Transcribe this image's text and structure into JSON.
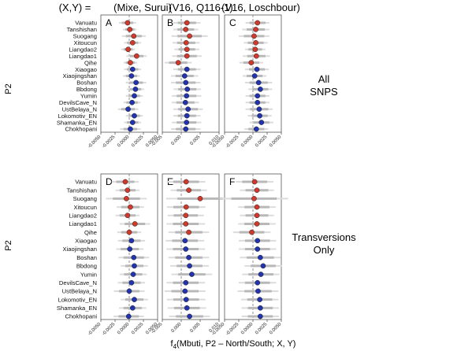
{
  "header": {
    "xy_label": "(X,Y) =",
    "columns": [
      "(Mixe, Surui)",
      "(V16, Q116-1)",
      "(V16, Loschbour)"
    ]
  },
  "row_titles": [
    [
      "All",
      "SNPS"
    ],
    [
      "Transversions",
      "Only"
    ]
  ],
  "ylabel": "P2",
  "xlabel_parts": {
    "f": "f",
    "sub": "4",
    "rest": "(Mbuti, P2 – North/South; X, Y)"
  },
  "colors": {
    "north": "#d0392b",
    "south": "#2233b0",
    "error_bar": "#b8b8b8",
    "error_bar_light": "#dcdcdc",
    "zero_line": "#777777"
  },
  "chart_data": {
    "type": "scatter",
    "populations": [
      "Vanuatu",
      "Tanshishan",
      "Suogang",
      "Xitoucun",
      "Liangdao2",
      "Liangdao1",
      "Qihe",
      "Xiaogao",
      "Xiaojingshan",
      "Boshan",
      "Bbdong",
      "Yumin",
      "DevilsCave_N",
      "UstBelaya_N",
      "Lokomotiv_EN",
      "Shamanka_EN",
      "Chokhopani"
    ],
    "group": [
      "north",
      "north",
      "north",
      "north",
      "north",
      "north",
      "north",
      "south",
      "south",
      "south",
      "south",
      "south",
      "south",
      "south",
      "south",
      "south",
      "south"
    ],
    "panels": [
      {
        "label": "A",
        "row": 0,
        "col": 0,
        "xlim": [
          -0.005,
          0.005
        ],
        "xticks": [
          -0.005,
          -0.0025,
          0.0,
          0.0025,
          0.005
        ],
        "xticklabels": [
          "-0.0050",
          "-0.0025",
          "0.0000",
          "0.0025",
          "0.0050"
        ],
        "values": [
          -0.0003,
          0.0001,
          0.0008,
          0.0006,
          -0.0002,
          0.0013,
          0.0002,
          0.0006,
          0.0004,
          0.0012,
          0.0011,
          0.0009,
          0.0005,
          -0.0002,
          0.0009,
          0.0006,
          0.0002
        ],
        "se": [
          0.0005,
          0.0004,
          0.0007,
          0.0005,
          0.0004,
          0.0006,
          0.0004,
          0.0005,
          0.0005,
          0.0006,
          0.0005,
          0.0005,
          0.0005,
          0.0006,
          0.0005,
          0.0005,
          0.0006
        ]
      },
      {
        "label": "B",
        "row": 0,
        "col": 1,
        "xlim": [
          -0.005,
          0.01
        ],
        "xticks": [
          -0.005,
          0.0,
          0.005,
          0.01
        ],
        "xticklabels": [
          "-0.005",
          "0.000",
          "0.005",
          "0.010"
        ],
        "values": [
          0.0015,
          0.0012,
          0.0022,
          0.0013,
          0.0015,
          0.0015,
          -0.0008,
          0.0015,
          0.0009,
          0.0012,
          0.0016,
          0.0014,
          0.0011,
          0.0018,
          0.0015,
          0.0014,
          0.0012
        ],
        "se": [
          0.0012,
          0.0011,
          0.0016,
          0.0012,
          0.0011,
          0.0013,
          0.0012,
          0.0012,
          0.0012,
          0.0013,
          0.0012,
          0.0013,
          0.0012,
          0.0013,
          0.0012,
          0.0013,
          0.0013
        ]
      },
      {
        "label": "C",
        "row": 0,
        "col": 2,
        "xlim": [
          -0.005,
          0.005
        ],
        "xticks": [
          -0.005,
          -0.0025,
          0.0,
          0.0025,
          0.005
        ],
        "xticklabels": [
          "-0.0050",
          "-0.0025",
          "0.0000",
          "0.0025",
          "0.0050"
        ],
        "values": [
          0.0008,
          0.0005,
          0.0002,
          0.0005,
          0.0004,
          0.0006,
          -0.0003,
          0.0007,
          0.0003,
          0.001,
          0.0013,
          0.0008,
          0.0008,
          0.0011,
          0.0012,
          0.0015,
          0.0006
        ],
        "se": [
          0.0007,
          0.0008,
          0.0009,
          0.0007,
          0.0006,
          0.0008,
          0.0007,
          0.0007,
          0.0007,
          0.0008,
          0.0007,
          0.0007,
          0.0007,
          0.0008,
          0.0007,
          0.0007,
          0.0007
        ]
      },
      {
        "label": "D",
        "row": 1,
        "col": 0,
        "xlim": [
          -0.005,
          0.005
        ],
        "xticks": [
          -0.005,
          -0.0025,
          0.0,
          0.0025,
          0.005
        ],
        "xticklabels": [
          "-0.0050",
          "-0.0025",
          "0.0000",
          "0.0025",
          "0.0050"
        ],
        "values": [
          -0.0007,
          -0.0003,
          -0.0005,
          0.0002,
          -0.0003,
          0.001,
          0.0,
          0.0004,
          0.0001,
          0.0008,
          0.0009,
          0.0007,
          0.0004,
          0.0,
          0.0009,
          0.0006,
          -0.0001
        ],
        "se": [
          0.0008,
          0.0007,
          0.0012,
          0.0008,
          0.0007,
          0.0009,
          0.0007,
          0.0008,
          0.0008,
          0.0009,
          0.0008,
          0.0008,
          0.0008,
          0.0009,
          0.0008,
          0.0008,
          0.0009
        ]
      },
      {
        "label": "E",
        "row": 1,
        "col": 1,
        "xlim": [
          -0.005,
          0.01
        ],
        "xticks": [
          -0.005,
          0.0,
          0.005,
          0.01
        ],
        "xticklabels": [
          "-0.005",
          "0.000",
          "0.005",
          "0.010"
        ],
        "values": [
          0.0013,
          0.002,
          0.005,
          0.0013,
          0.0012,
          0.0012,
          0.002,
          0.001,
          0.0012,
          0.002,
          0.0022,
          0.0028,
          0.0012,
          0.001,
          0.0013,
          0.0015,
          0.0022
        ],
        "se": [
          0.0017,
          0.0016,
          0.003,
          0.0017,
          0.0016,
          0.0017,
          0.0018,
          0.0017,
          0.0017,
          0.0018,
          0.0017,
          0.0018,
          0.0017,
          0.0018,
          0.0017,
          0.0017,
          0.0018
        ]
      },
      {
        "label": "F",
        "row": 1,
        "col": 2,
        "xlim": [
          -0.005,
          0.005
        ],
        "xticks": [
          -0.005,
          -0.0025,
          0.0,
          0.0025,
          0.005
        ],
        "xticklabels": [
          "-0.0050",
          "-0.0025",
          "0.0000",
          "0.0025",
          "0.0050"
        ],
        "values": [
          0.0003,
          0.0007,
          0.0002,
          0.0007,
          0.0007,
          0.0007,
          -0.0002,
          0.0008,
          0.0008,
          0.0013,
          0.0018,
          0.0014,
          0.0008,
          0.0009,
          0.0012,
          0.0013,
          0.0013
        ],
        "se": [
          0.0011,
          0.001,
          0.002,
          0.0011,
          0.001,
          0.0011,
          0.0011,
          0.0011,
          0.0011,
          0.0012,
          0.0011,
          0.0011,
          0.0011,
          0.0012,
          0.0011,
          0.0011,
          0.0011
        ]
      }
    ]
  }
}
